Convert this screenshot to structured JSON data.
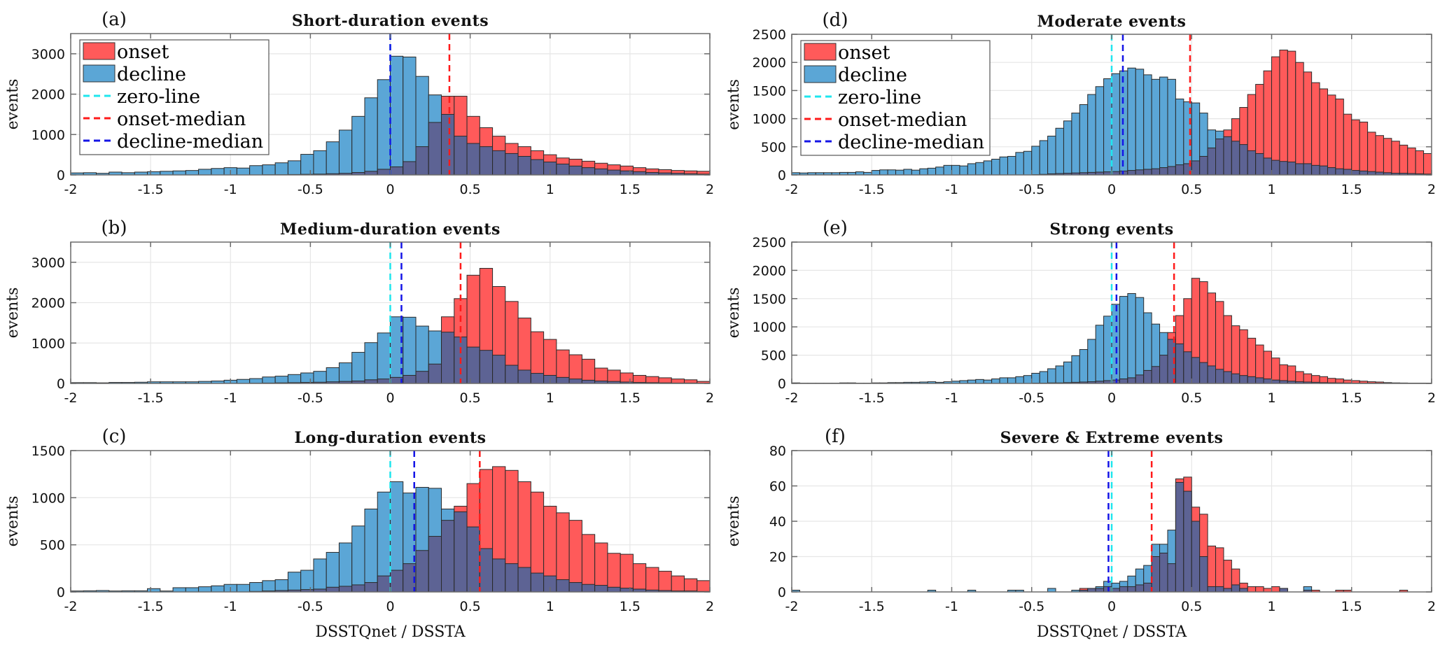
{
  "figure": {
    "xlabel": "DSSTQnet / DSSTA",
    "ylabel": "events"
  },
  "legend": {
    "items": [
      {
        "label": "onset",
        "kind": "patch",
        "color": "#ff5a5a"
      },
      {
        "label": "decline",
        "kind": "patch",
        "color": "#5ba6d6"
      },
      {
        "label": "zero-line",
        "kind": "dash",
        "color": "#1fe6ee"
      },
      {
        "label": "onset-median",
        "kind": "dash",
        "color": "#ff1a1a"
      },
      {
        "label": "decline-median",
        "kind": "dash",
        "color": "#1414e6"
      }
    ]
  },
  "colors": {
    "onset": "#ff5a5a",
    "decline": "#5ba6d6",
    "overlap": "#5d6394",
    "zero_line": "#1fe6ee",
    "onset_median": "#ff1a1a",
    "decline_median": "#1414e6",
    "grid": "#e6e6e6",
    "axis": "#6b6b6b"
  },
  "chart_data": [
    {
      "id": "a",
      "letter": "(a)",
      "type": "bar",
      "title": "Short-duration events",
      "xlabel": "",
      "ylabel": "events",
      "xlim": [
        -2,
        2
      ],
      "ylim": [
        0,
        3500
      ],
      "xticks": [
        "-2",
        "-1.5",
        "-1",
        "-0.5",
        "0",
        "0.5",
        "1",
        "1.5",
        "2"
      ],
      "yticks": [
        "0",
        "1000",
        "2000",
        "3000"
      ],
      "ytick_values": [
        0,
        1000,
        2000,
        3000
      ],
      "legend": "top-left",
      "grid": true,
      "bin_start": -2,
      "bin_width": 0.08,
      "medians": {
        "zero": 0,
        "onset": 0.37,
        "decline": 0.0
      },
      "series": [
        {
          "name": "onset",
          "values": [
            0,
            0,
            0,
            0,
            0,
            0,
            0,
            0,
            0,
            0,
            0,
            0,
            0,
            0,
            0,
            5,
            5,
            10,
            15,
            20,
            30,
            40,
            60,
            90,
            140,
            200,
            330,
            700,
            1300,
            1950,
            1950,
            1450,
            1170,
            960,
            780,
            700,
            600,
            500,
            420,
            390,
            340,
            290,
            250,
            220,
            180,
            150,
            130,
            110,
            100,
            90
          ]
        },
        {
          "name": "decline",
          "values": [
            50,
            55,
            40,
            70,
            55,
            70,
            80,
            90,
            100,
            110,
            140,
            160,
            180,
            170,
            230,
            250,
            300,
            350,
            510,
            600,
            820,
            1110,
            1450,
            1910,
            2360,
            2940,
            2920,
            2440,
            1980,
            1500,
            960,
            780,
            700,
            600,
            530,
            460,
            380,
            320,
            270,
            220,
            180,
            150,
            120,
            100,
            80,
            60,
            50,
            40,
            30,
            20
          ]
        }
      ]
    },
    {
      "id": "b",
      "letter": "(b)",
      "type": "bar",
      "title": "Medium-duration events",
      "xlabel": "",
      "ylabel": "events",
      "xlim": [
        -2,
        2
      ],
      "ylim": [
        0,
        3500
      ],
      "xticks": [
        "-2",
        "-1.5",
        "-1",
        "-0.5",
        "0",
        "0.5",
        "1",
        "1.5",
        "2"
      ],
      "yticks": [
        "0",
        "1000",
        "2000",
        "3000"
      ],
      "ytick_values": [
        0,
        1000,
        2000,
        3000
      ],
      "legend": "none",
      "grid": true,
      "bin_start": -2,
      "bin_width": 0.08,
      "medians": {
        "zero": 0,
        "onset": 0.44,
        "decline": 0.07
      },
      "series": [
        {
          "name": "onset",
          "values": [
            0,
            0,
            0,
            0,
            0,
            0,
            0,
            0,
            0,
            0,
            0,
            0,
            0,
            0,
            5,
            10,
            15,
            20,
            25,
            30,
            40,
            50,
            60,
            90,
            110,
            150,
            200,
            300,
            480,
            1650,
            2100,
            2680,
            2850,
            2400,
            2030,
            1620,
            1280,
            1090,
            830,
            710,
            600,
            380,
            330,
            260,
            200,
            170,
            140,
            110,
            90,
            50
          ]
        },
        {
          "name": "decline",
          "values": [
            20,
            20,
            15,
            25,
            25,
            30,
            40,
            40,
            40,
            40,
            50,
            60,
            80,
            100,
            120,
            160,
            180,
            220,
            260,
            300,
            390,
            510,
            770,
            1010,
            1250,
            1650,
            1640,
            1420,
            1300,
            1270,
            1150,
            900,
            820,
            700,
            450,
            330,
            250,
            200,
            150,
            110,
            80,
            60,
            50,
            35,
            25,
            20,
            15,
            10,
            10,
            5
          ]
        }
      ]
    },
    {
      "id": "c",
      "letter": "(c)",
      "type": "bar",
      "title": "Long-duration events",
      "xlabel": "DSSTQnet / DSSTA",
      "ylabel": "events",
      "xlim": [
        -2,
        2
      ],
      "ylim": [
        0,
        1500
      ],
      "xticks": [
        "-2",
        "-1.5",
        "-1",
        "-0.5",
        "0",
        "0.5",
        "1",
        "1.5",
        "2"
      ],
      "yticks": [
        "0",
        "500",
        "1000",
        "1500"
      ],
      "ytick_values": [
        0,
        500,
        1000,
        1500
      ],
      "legend": "none",
      "grid": true,
      "bin_start": -2,
      "bin_width": 0.08,
      "medians": {
        "zero": 0,
        "onset": 0.56,
        "decline": 0.15
      },
      "series": [
        {
          "name": "onset",
          "values": [
            0,
            0,
            0,
            0,
            0,
            0,
            0,
            0,
            0,
            0,
            0,
            0,
            0,
            0,
            5,
            10,
            15,
            20,
            25,
            30,
            50,
            60,
            75,
            100,
            170,
            230,
            300,
            440,
            590,
            760,
            910,
            1150,
            1300,
            1330,
            1290,
            1170,
            1060,
            910,
            840,
            760,
            610,
            520,
            410,
            400,
            300,
            260,
            220,
            170,
            140,
            120
          ]
        },
        {
          "name": "decline",
          "values": [
            10,
            12,
            15,
            10,
            12,
            12,
            35,
            10,
            45,
            45,
            55,
            65,
            80,
            80,
            100,
            120,
            130,
            210,
            230,
            350,
            420,
            520,
            700,
            880,
            1060,
            1170,
            1050,
            1110,
            1100,
            880,
            850,
            690,
            460,
            350,
            300,
            260,
            200,
            170,
            130,
            100,
            80,
            70,
            50,
            40,
            30,
            20,
            15,
            10,
            10,
            5
          ]
        }
      ]
    },
    {
      "id": "d",
      "letter": "(d)",
      "type": "bar",
      "title": "Moderate events",
      "xlabel": "",
      "ylabel": "events",
      "xlim": [
        -2,
        2
      ],
      "ylim": [
        0,
        2500
      ],
      "xticks": [
        "-2",
        "-1.5",
        "-1",
        "-0.5",
        "0",
        "0.5",
        "1",
        "1.5",
        "2"
      ],
      "yticks": [
        "0",
        "500",
        "1000",
        "1500",
        "2000",
        "2500"
      ],
      "ytick_values": [
        0,
        500,
        1000,
        1500,
        2000,
        2500
      ],
      "legend": "top-left",
      "grid": true,
      "bin_start": -2,
      "bin_width": 0.05,
      "medians": {
        "zero": 0,
        "onset": 0.49,
        "decline": 0.07
      },
      "series": [
        {
          "name": "onset",
          "values": [
            0,
            0,
            0,
            0,
            0,
            0,
            0,
            0,
            0,
            0,
            0,
            0,
            0,
            0,
            0,
            0,
            0,
            0,
            0,
            0,
            0,
            0,
            0,
            0,
            0,
            0,
            0,
            0,
            0,
            0,
            5,
            10,
            20,
            25,
            30,
            35,
            40,
            45,
            50,
            55,
            60,
            70,
            80,
            90,
            100,
            110,
            130,
            150,
            180,
            200,
            250,
            330,
            480,
            640,
            800,
            1000,
            1200,
            1430,
            1610,
            1850,
            2100,
            2220,
            2200,
            2000,
            1830,
            1640,
            1530,
            1420,
            1350,
            1080,
            980,
            940,
            760,
            700,
            650,
            600,
            530,
            480,
            430,
            380
          ]
        },
        {
          "name": "decline",
          "values": [
            40,
            35,
            40,
            40,
            40,
            40,
            45,
            45,
            55,
            45,
            80,
            90,
            90,
            85,
            100,
            85,
            110,
            120,
            140,
            170,
            170,
            160,
            200,
            220,
            250,
            280,
            320,
            330,
            400,
            420,
            510,
            610,
            690,
            830,
            960,
            1100,
            1250,
            1430,
            1570,
            1710,
            1800,
            1850,
            1900,
            1880,
            1780,
            1700,
            1740,
            1700,
            1350,
            1300,
            1280,
            1100,
            800,
            780,
            680,
            600,
            540,
            430,
            380,
            300,
            260,
            240,
            230,
            200,
            200,
            170,
            160,
            130,
            110,
            100,
            80,
            70,
            60,
            50,
            40,
            30,
            30,
            25,
            20,
            15
          ]
        }
      ]
    },
    {
      "id": "e",
      "letter": "(e)",
      "type": "bar",
      "title": "Strong events",
      "xlabel": "",
      "ylabel": "events",
      "xlim": [
        -2,
        2
      ],
      "ylim": [
        0,
        2500
      ],
      "xticks": [
        "-2",
        "-1.5",
        "-1",
        "-0.5",
        "0",
        "0.5",
        "1",
        "1.5",
        "2"
      ],
      "yticks": [
        "0",
        "500",
        "1000",
        "1500",
        "2000",
        "2500"
      ],
      "ytick_values": [
        0,
        500,
        1000,
        1500,
        2000,
        2500
      ],
      "legend": "none",
      "grid": true,
      "bin_start": -2,
      "bin_width": 0.05,
      "medians": {
        "zero": 0,
        "onset": 0.39,
        "decline": 0.03
      },
      "series": [
        {
          "name": "onset",
          "values": [
            0,
            0,
            0,
            0,
            0,
            0,
            0,
            0,
            0,
            0,
            0,
            0,
            0,
            0,
            0,
            0,
            0,
            0,
            0,
            0,
            0,
            0,
            0,
            0,
            0,
            0,
            0,
            0,
            0,
            0,
            5,
            5,
            10,
            10,
            15,
            20,
            25,
            30,
            40,
            50,
            60,
            80,
            100,
            150,
            230,
            300,
            500,
            900,
            1200,
            1500,
            1860,
            1800,
            1600,
            1450,
            1200,
            1020,
            950,
            800,
            680,
            570,
            450,
            330,
            310,
            210,
            170,
            140,
            120,
            90,
            80,
            60,
            50,
            40,
            30,
            25,
            15,
            10,
            8,
            5,
            5,
            5
          ]
        },
        {
          "name": "decline",
          "values": [
            10,
            5,
            5,
            5,
            5,
            5,
            10,
            10,
            5,
            5,
            10,
            10,
            15,
            15,
            20,
            20,
            25,
            30,
            20,
            30,
            40,
            50,
            60,
            70,
            60,
            80,
            100,
            100,
            120,
            140,
            180,
            210,
            260,
            310,
            380,
            490,
            600,
            780,
            1030,
            1190,
            1400,
            1540,
            1590,
            1520,
            1250,
            1050,
            900,
            780,
            700,
            560,
            460,
            370,
            310,
            250,
            210,
            170,
            140,
            120,
            100,
            80,
            60,
            50,
            40,
            30,
            25,
            20,
            15,
            12,
            10,
            8,
            5,
            5,
            5,
            5,
            5,
            5,
            5,
            5,
            5,
            5
          ]
        }
      ]
    },
    {
      "id": "f",
      "letter": "(f)",
      "type": "bar",
      "title": "Severe & Extreme events",
      "xlabel": "DSSTQnet / DSSTA",
      "ylabel": "events",
      "xlim": [
        -2,
        2
      ],
      "ylim": [
        0,
        80
      ],
      "xticks": [
        "-2",
        "-1.5",
        "-1",
        "-0.5",
        "0",
        "0.5",
        "1",
        "1.5",
        "2"
      ],
      "yticks": [
        "0",
        "20",
        "40",
        "60",
        "80"
      ],
      "ytick_values": [
        0,
        20,
        40,
        60,
        80
      ],
      "legend": "none",
      "grid": true,
      "bin_start": -2,
      "bin_width": 0.05,
      "medians": {
        "zero": 0,
        "onset": 0.25,
        "decline": -0.02
      },
      "series": [
        {
          "name": "onset",
          "values": [
            0,
            0,
            0,
            0,
            0,
            0,
            0,
            0,
            0,
            0,
            0,
            0,
            0,
            0,
            0,
            0,
            0,
            0,
            0,
            0,
            0,
            0,
            0,
            0,
            0,
            0,
            0,
            0,
            0,
            0,
            0,
            0,
            0,
            0,
            0,
            0,
            2,
            2,
            2,
            3,
            2,
            3,
            3,
            4,
            5,
            20,
            22,
            16,
            64,
            65,
            48,
            44,
            26,
            25,
            18,
            13,
            5,
            3,
            3,
            2,
            3,
            2,
            0,
            0,
            1,
            1,
            0,
            0,
            1,
            1,
            0,
            0,
            0,
            0,
            0,
            0,
            1,
            0,
            0,
            0
          ]
        },
        {
          "name": "decline",
          "values": [
            1,
            0,
            0,
            0,
            0,
            0,
            0,
            0,
            0,
            0,
            0,
            0,
            0,
            0,
            0,
            0,
            0,
            1,
            0,
            0,
            0,
            0,
            1,
            0,
            0,
            0,
            0,
            1,
            1,
            0,
            0,
            0,
            2,
            0,
            0,
            1,
            1,
            2,
            3,
            6,
            5,
            6,
            9,
            13,
            15,
            27,
            27,
            35,
            62,
            57,
            40,
            20,
            3,
            3,
            2,
            4,
            2,
            0,
            0,
            0,
            0,
            2,
            0,
            0,
            3,
            0,
            0,
            0,
            0,
            0,
            0,
            0,
            0,
            0,
            0,
            0,
            0,
            0,
            0,
            0
          ]
        }
      ]
    }
  ]
}
